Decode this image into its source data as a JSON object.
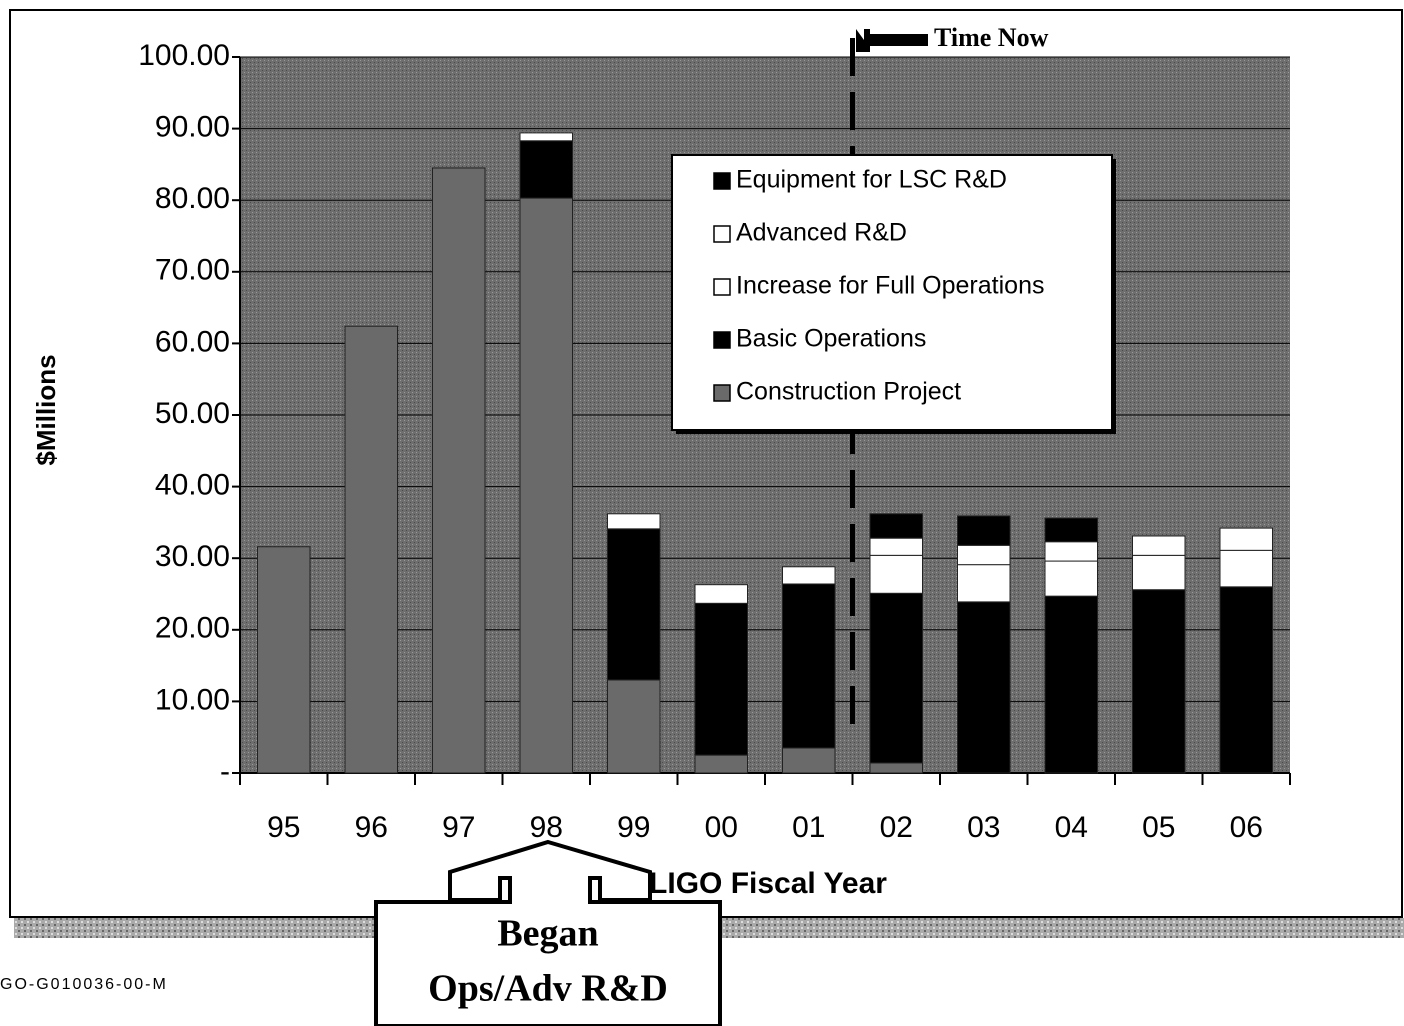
{
  "chart_data": {
    "type": "stacked-bar",
    "y_label": "$Millions",
    "x_label": "LIGO Fiscal Year",
    "annotations": [
      "Time Now",
      "Began",
      "Ops/Adv R&D"
    ],
    "footer": "GO-G010036-00-M",
    "categories": [
      "95",
      "96",
      "97",
      "98",
      "99",
      "00",
      "01",
      "02",
      "03",
      "04",
      "05",
      "06"
    ],
    "series": [
      {
        "name": "Construction Project",
        "color": "#6a6a6a",
        "values": [
          31.6,
          62.4,
          84.5,
          80.3,
          13.0,
          2.5,
          3.5,
          1.4,
          0,
          0,
          0,
          0
        ]
      },
      {
        "name": "Basic Operations",
        "color": "#000000",
        "values": [
          0,
          0,
          0,
          8.0,
          21.1,
          21.2,
          22.9,
          23.7,
          23.9,
          24.7,
          25.6,
          26.0
        ]
      },
      {
        "name": "Increase for Full Operations",
        "color": "#ffffff",
        "values": [
          0,
          0,
          0,
          0,
          0,
          0,
          0,
          5.3,
          5.2,
          4.9,
          4.8,
          5.1
        ]
      },
      {
        "name": "Advanced R&D",
        "color": "#ffffff",
        "values": [
          0,
          0,
          0,
          1.1,
          2.1,
          2.6,
          2.4,
          2.4,
          2.7,
          2.7,
          2.7,
          3.1
        ]
      },
      {
        "name": "Equipment for LSC R&D",
        "color": "#000000",
        "values": [
          0,
          0,
          0,
          0,
          0,
          0,
          0,
          3.4,
          4.1,
          3.3,
          0,
          0
        ]
      }
    ],
    "ylim": [
      0,
      100
    ],
    "yticks": [
      {
        "value": 0,
        "label": "-"
      },
      {
        "value": 10,
        "label": "10.00"
      },
      {
        "value": 20,
        "label": "20.00"
      },
      {
        "value": 30,
        "label": "30.00"
      },
      {
        "value": 40,
        "label": "40.00"
      },
      {
        "value": 50,
        "label": "50.00"
      },
      {
        "value": 60,
        "label": "60.00"
      },
      {
        "value": 70,
        "label": "70.00"
      },
      {
        "value": 80,
        "label": "80.00"
      },
      {
        "value": 90,
        "label": "90.00"
      },
      {
        "value": 100,
        "label": "100.00"
      }
    ],
    "grid": true,
    "legend": "upper right"
  }
}
